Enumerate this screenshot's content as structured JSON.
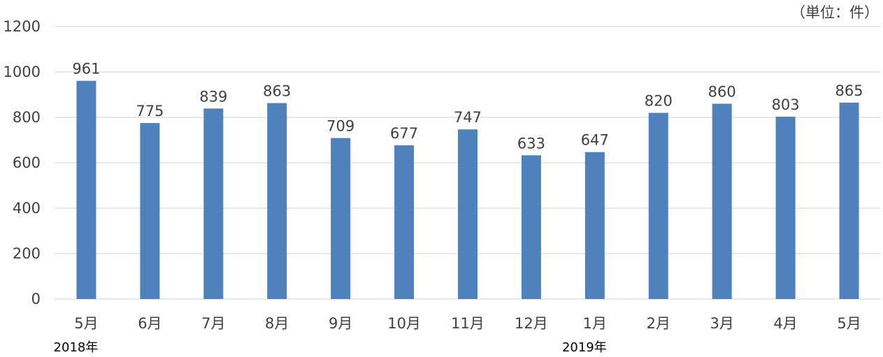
{
  "unit_label": "（単位：件）",
  "chart_data": {
    "type": "bar",
    "title": "",
    "xlabel": "",
    "ylabel": "",
    "ylim": [
      0,
      1200
    ],
    "yticks": [
      0,
      200,
      400,
      600,
      800,
      1000,
      1200
    ],
    "grid": true,
    "legend": "none",
    "categories": [
      "5月",
      "6月",
      "7月",
      "8月",
      "9月",
      "10月",
      "11月",
      "12月",
      "1月",
      "2月",
      "3月",
      "4月",
      "5月"
    ],
    "values": [
      961,
      775,
      839,
      863,
      709,
      677,
      747,
      633,
      647,
      820,
      860,
      803,
      865
    ],
    "year_labels": [
      {
        "text": "2018年",
        "category_index": 0
      },
      {
        "text": "2019年",
        "category_index": 8
      }
    ],
    "bar_color": "#4F81BD",
    "grid_color": "#D9D9D9"
  }
}
